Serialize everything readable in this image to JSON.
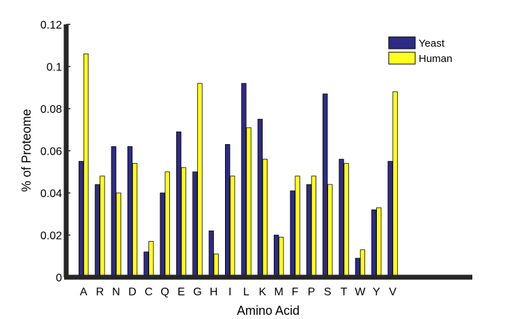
{
  "chart_data": {
    "type": "bar",
    "title": "",
    "xlabel": "Amino Acid",
    "ylabel": "% of Proteome",
    "ylim": [
      0,
      0.12
    ],
    "yticks": [
      "0",
      "0.02",
      "0.04",
      "0.06",
      "0.08",
      "0.1",
      "0.12"
    ],
    "ytick_values": [
      0,
      0.02,
      0.04,
      0.06,
      0.08,
      0.1,
      0.12
    ],
    "categories": [
      "A",
      "R",
      "N",
      "D",
      "C",
      "Q",
      "E",
      "G",
      "H",
      "I",
      "L",
      "K",
      "M",
      "F",
      "P",
      "S",
      "T",
      "W",
      "Y",
      "V"
    ],
    "series": [
      {
        "name": "Yeast",
        "color": "#2e2b85",
        "values": [
          0.055,
          0.044,
          0.062,
          0.062,
          0.012,
          0.04,
          0.069,
          0.05,
          0.022,
          0.063,
          0.092,
          0.075,
          0.02,
          0.041,
          0.044,
          0.087,
          0.056,
          0.009,
          0.032,
          0.055
        ]
      },
      {
        "name": "Human",
        "color": "#ffff1e",
        "values": [
          0.106,
          0.048,
          0.04,
          0.054,
          0.017,
          0.05,
          0.052,
          0.092,
          0.011,
          0.048,
          0.071,
          0.056,
          0.019,
          0.048,
          0.048,
          0.044,
          0.054,
          0.013,
          0.033,
          0.088
        ]
      }
    ],
    "legend_position": "top-right",
    "grid": false
  }
}
